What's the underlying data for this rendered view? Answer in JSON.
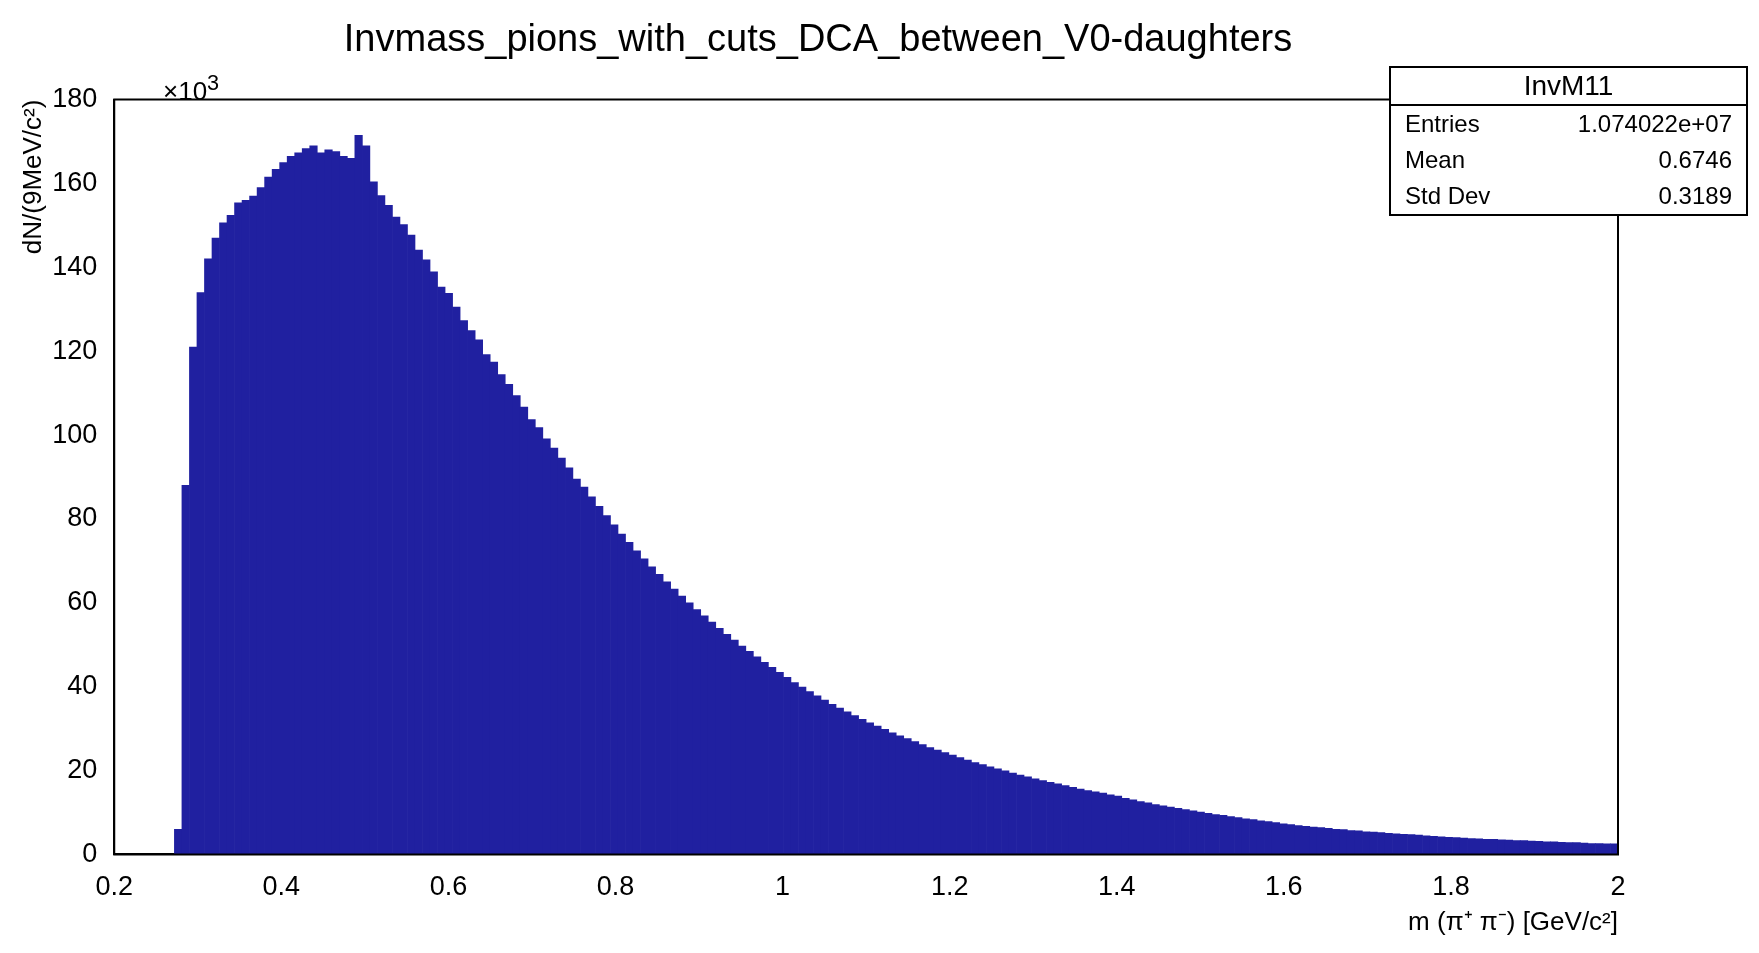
{
  "chart_data": {
    "type": "histogram",
    "title": "Invmass_pions_with_cuts_DCA_between_V0-daughters",
    "xlabel": "m (π⁺ π⁻) [GeV/c²]",
    "ylabel": "dN/(9MeV/c²)",
    "color": "#2020a0",
    "annotations": [
      "×10$^{3}$",
      "InvM11",
      "Entries",
      "1.074022e+07",
      "Mean",
      "0.6746",
      "Std Dev",
      "0.3189"
    ],
    "xlim": [
      0.2,
      2
    ],
    "xticks": [
      0.2,
      0.4,
      0.6,
      0.8,
      1,
      1.2,
      1.4,
      1.6,
      1.8,
      2
    ],
    "ylim": [
      0,
      180
    ],
    "yticks": [
      0,
      20,
      40,
      60,
      80,
      100,
      120,
      140,
      160,
      180
    ],
    "bins": [
      0.2,
      0.209,
      0.218,
      0.227,
      0.236,
      0.245,
      0.254,
      0.263,
      0.272,
      0.281,
      0.29,
      0.299,
      0.308,
      0.317,
      0.326,
      0.335,
      0.344,
      0.353,
      0.362,
      0.371,
      0.38,
      0.389,
      0.398,
      0.407,
      0.416,
      0.425,
      0.434,
      0.443,
      0.452,
      0.461,
      0.47,
      0.479,
      0.488,
      0.497,
      0.506,
      0.515,
      0.524,
      0.533,
      0.542,
      0.551,
      0.56,
      0.569,
      0.578,
      0.587,
      0.596,
      0.605,
      0.614,
      0.623,
      0.632,
      0.641,
      0.65,
      0.659,
      0.668,
      0.677,
      0.686,
      0.695,
      0.704,
      0.713,
      0.722,
      0.731,
      0.74,
      0.749,
      0.758,
      0.767,
      0.776,
      0.785,
      0.794,
      0.803,
      0.812,
      0.821,
      0.83,
      0.839,
      0.848,
      0.857,
      0.866,
      0.875,
      0.884,
      0.893,
      0.902,
      0.911,
      0.92,
      0.929,
      0.938,
      0.947,
      0.956,
      0.965,
      0.974,
      0.983,
      0.992,
      1.001,
      1.01,
      1.019,
      1.028,
      1.037,
      1.046,
      1.055,
      1.064,
      1.073,
      1.082,
      1.091,
      1.1,
      1.109,
      1.118,
      1.127,
      1.136,
      1.145,
      1.154,
      1.163,
      1.172,
      1.181,
      1.19,
      1.199,
      1.208,
      1.217,
      1.226,
      1.235,
      1.244,
      1.253,
      1.262,
      1.271,
      1.28,
      1.289,
      1.298,
      1.307,
      1.316,
      1.325,
      1.334,
      1.343,
      1.352,
      1.361,
      1.37,
      1.379,
      1.388,
      1.397,
      1.406,
      1.415,
      1.424,
      1.433,
      1.442,
      1.451,
      1.46,
      1.469,
      1.478,
      1.487,
      1.496,
      1.505,
      1.514,
      1.523,
      1.532,
      1.541,
      1.55,
      1.559,
      1.568,
      1.577,
      1.586,
      1.595,
      1.604,
      1.613,
      1.622,
      1.631,
      1.64,
      1.649,
      1.658,
      1.667,
      1.676,
      1.685,
      1.694,
      1.703,
      1.712,
      1.721,
      1.73,
      1.739,
      1.748,
      1.757,
      1.766,
      1.775,
      1.784,
      1.793,
      1.802,
      1.811,
      1.82,
      1.829,
      1.838,
      1.847,
      1.856,
      1.865,
      1.874,
      1.883,
      1.892,
      1.901,
      1.91,
      1.919,
      1.928,
      1.937,
      1.946,
      1.955,
      1.964,
      1.973,
      1.982,
      1.991,
      2
    ],
    "values": [
      0,
      0,
      0,
      0,
      0,
      0,
      0,
      0,
      6,
      88,
      121,
      134,
      142,
      147,
      150.6,
      152.4,
      155.4,
      156,
      157,
      159,
      161.5,
      163.4,
      165,
      166.5,
      167.3,
      168.3,
      169,
      167.3,
      168,
      167.6,
      166.5,
      166,
      171.5,
      169,
      160.4,
      157.1,
      154.8,
      152,
      150.2,
      147.7,
      144.1,
      141.8,
      138.9,
      135.3,
      133.8,
      130.5,
      127.3,
      124.9,
      122.7,
      119.2,
      117.4,
      114.4,
      112.1,
      109.4,
      106.7,
      103.7,
      101.8,
      99.1,
      96.9,
      94.5,
      92.2,
      89.5,
      87.6,
      85.3,
      83,
      80.8,
      78.6,
      76.4,
      74.4,
      72.4,
      70.5,
      68.6,
      66.8,
      65,
      63.3,
      61.6,
      60,
      58.4,
      56.9,
      55.4,
      53.9,
      52.5,
      51.1,
      49.7,
      48.4,
      47.1,
      45.8,
      44.6,
      43.4,
      42.2,
      41,
      39.9,
      38.8,
      37.8,
      36.8,
      35.8,
      34.9,
      34,
      33.1,
      32.2,
      31.4,
      30.6,
      29.8,
      29,
      28.3,
      27.6,
      26.9,
      26.2,
      25.5,
      24.9,
      24.3,
      23.7,
      23.1,
      22.5,
      21.9,
      21.4,
      20.9,
      20.4,
      19.9,
      19.4,
      18.9,
      18.5,
      18,
      17.6,
      17.2,
      16.8,
      16.4,
      16,
      15.6,
      15.2,
      14.9,
      14.6,
      14.2,
      13.9,
      13.4,
      13,
      12.6,
      12.3,
      11.9,
      11.6,
      11.3,
      11,
      10.7,
      10.4,
      10.1,
      9.8,
      9.5,
      9.3,
      9,
      8.8,
      8.5,
      8.3,
      8,
      7.8,
      7.6,
      7.3,
      7.1,
      6.9,
      6.7,
      6.5,
      6.4,
      6.2,
      6,
      5.9,
      5.7,
      5.6,
      5.4,
      5.3,
      5.2,
      5,
      4.9,
      4.8,
      4.7,
      4.6,
      4.4,
      4.3,
      4.2,
      4.1,
      4,
      3.9,
      3.8,
      3.7,
      3.6,
      3.6,
      3.5,
      3.4,
      3.3,
      3.3,
      3.2,
      3.1,
      3,
      3,
      2.9,
      2.8,
      2.8,
      2.7,
      2.6,
      2.6,
      2.5,
      2.5
    ]
  }
}
